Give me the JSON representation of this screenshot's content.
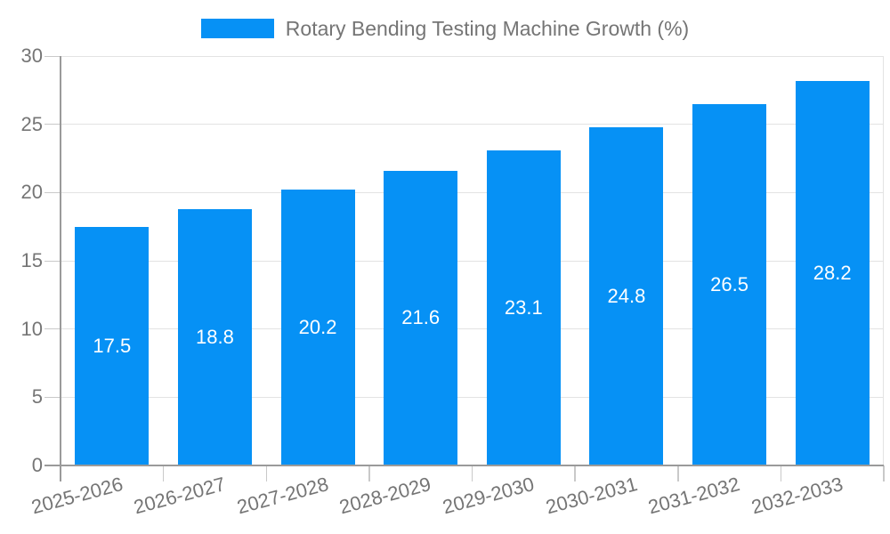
{
  "legend": {
    "label": "Rotary Bending Testing Machine Growth (%)"
  },
  "chart_data": {
    "type": "bar",
    "title": "Rotary Bending Testing Machine Growth (%)",
    "categories": [
      "2025-2026",
      "2026-2027",
      "2027-2028",
      "2028-2029",
      "2029-2030",
      "2030-2031",
      "2031-2032",
      "2032-2033"
    ],
    "series": [
      {
        "name": "Rotary Bending Testing Machine Growth (%)",
        "values": [
          17.5,
          18.8,
          20.2,
          21.6,
          23.1,
          24.8,
          26.5,
          28.2
        ]
      }
    ],
    "data_labels": [
      "17.5",
      "18.8",
      "20.2",
      "21.6",
      "23.1",
      "24.8",
      "26.5",
      "28.2"
    ],
    "xlabel": "",
    "ylabel": "",
    "ylim": [
      0,
      30
    ],
    "yticks": [
      0,
      5,
      10,
      15,
      20,
      25,
      30
    ],
    "grid": true,
    "legend_position": "top",
    "x_label_rotation_deg": -15,
    "colors": {
      "bar": "#0691f5",
      "bar_label": "#ffffff",
      "axis_line": "#9a9a9a",
      "grid_line": "#e3e3e3",
      "tick_mark": "#c9c9c9",
      "text": "#757575",
      "background": "#ffffff"
    }
  }
}
